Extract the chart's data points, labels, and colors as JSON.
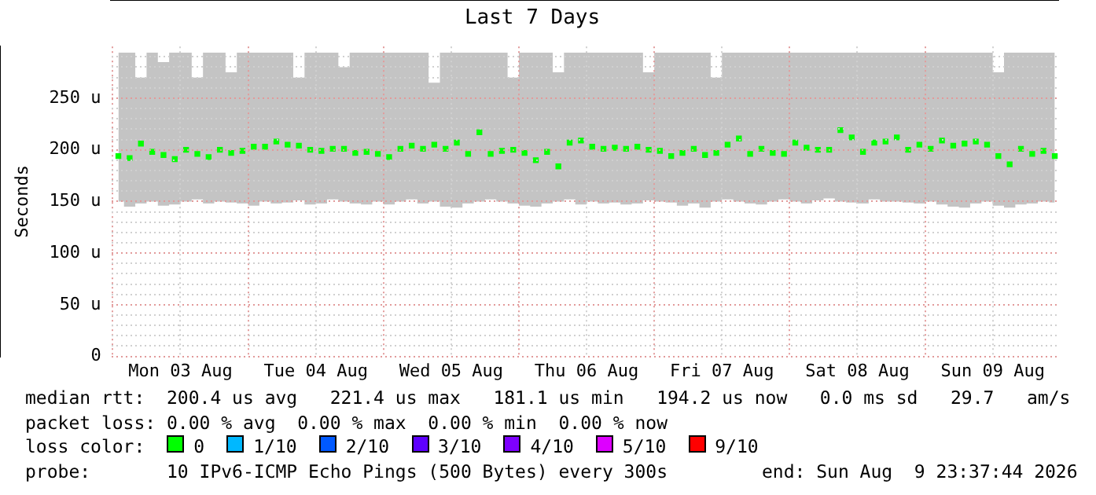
{
  "chart_data": {
    "type": "scatter",
    "title": "Last 7 Days",
    "ylabel": "Seconds",
    "marker": "square",
    "grid": true,
    "legend": "bottom",
    "legend_title": "loss color:",
    "xlim": [
      "2026-08-02T23:37",
      "2026-08-09T23:37"
    ],
    "xticks": [
      {
        "value": "2026-08-03T00:00",
        "label": null
      },
      {
        "value": "2026-08-03T12:00",
        "label": "Mon 03 Aug"
      },
      {
        "value": "2026-08-04T00:00",
        "label": null
      },
      {
        "value": "2026-08-04T12:00",
        "label": "Tue 04 Aug"
      },
      {
        "value": "2026-08-05T00:00",
        "label": null
      },
      {
        "value": "2026-08-05T12:00",
        "label": "Wed 05 Aug"
      },
      {
        "value": "2026-08-06T00:00",
        "label": null
      },
      {
        "value": "2026-08-06T12:00",
        "label": "Thu 06 Aug"
      },
      {
        "value": "2026-08-07T00:00",
        "label": null
      },
      {
        "value": "2026-08-07T12:00",
        "label": "Fri 07 Aug"
      },
      {
        "value": "2026-08-08T00:00",
        "label": null
      },
      {
        "value": "2026-08-08T12:00",
        "label": "Sat 08 Aug"
      },
      {
        "value": "2026-08-09T00:00",
        "label": null
      },
      {
        "value": "2026-08-09T12:00",
        "label": "Sun 09 Aug"
      }
    ],
    "ylim": [
      0,
      300
    ],
    "yticks": [
      {
        "value": 0,
        "label": "0"
      },
      {
        "value": 10,
        "label": null
      },
      {
        "value": 20,
        "label": null
      },
      {
        "value": 30,
        "label": null
      },
      {
        "value": 40,
        "label": null
      },
      {
        "value": 50,
        "label": "50 u"
      },
      {
        "value": 60,
        "label": null
      },
      {
        "value": 70,
        "label": null
      },
      {
        "value": 80,
        "label": null
      },
      {
        "value": 90,
        "label": null
      },
      {
        "value": 100,
        "label": "100 u"
      },
      {
        "value": 110,
        "label": null
      },
      {
        "value": 120,
        "label": null
      },
      {
        "value": 130,
        "label": null
      },
      {
        "value": 140,
        "label": null
      },
      {
        "value": 150,
        "label": "150 u"
      },
      {
        "value": 160,
        "label": null
      },
      {
        "value": 170,
        "label": null
      },
      {
        "value": 180,
        "label": null
      },
      {
        "value": 190,
        "label": null
      },
      {
        "value": 200,
        "label": "200 u"
      },
      {
        "value": 210,
        "label": null
      },
      {
        "value": 220,
        "label": null
      },
      {
        "value": 230,
        "label": null
      },
      {
        "value": 240,
        "label": null
      },
      {
        "value": 250,
        "label": "250 u"
      },
      {
        "value": 260,
        "label": null
      },
      {
        "value": 270,
        "label": null
      },
      {
        "value": 280,
        "label": null
      },
      {
        "value": 290,
        "label": null
      }
    ],
    "x": [
      "2026-08-03T01:00",
      "2026-08-03T03:00",
      "2026-08-03T05:00",
      "2026-08-03T07:00",
      "2026-08-03T09:00",
      "2026-08-03T11:00",
      "2026-08-03T13:00",
      "2026-08-03T15:00",
      "2026-08-03T17:00",
      "2026-08-03T19:00",
      "2026-08-03T21:00",
      "2026-08-03T23:00",
      "2026-08-04T01:00",
      "2026-08-04T03:00",
      "2026-08-04T05:00",
      "2026-08-04T07:00",
      "2026-08-04T09:00",
      "2026-08-04T11:00",
      "2026-08-04T13:00",
      "2026-08-04T15:00",
      "2026-08-04T17:00",
      "2026-08-04T19:00",
      "2026-08-04T21:00",
      "2026-08-04T23:00",
      "2026-08-05T01:00",
      "2026-08-05T03:00",
      "2026-08-05T05:00",
      "2026-08-05T07:00",
      "2026-08-05T09:00",
      "2026-08-05T11:00",
      "2026-08-05T13:00",
      "2026-08-05T15:00",
      "2026-08-05T17:00",
      "2026-08-05T19:00",
      "2026-08-05T21:00",
      "2026-08-05T23:00",
      "2026-08-06T01:00",
      "2026-08-06T03:00",
      "2026-08-06T05:00",
      "2026-08-06T07:00",
      "2026-08-06T09:00",
      "2026-08-06T11:00",
      "2026-08-06T13:00",
      "2026-08-06T15:00",
      "2026-08-06T17:00",
      "2026-08-06T19:00",
      "2026-08-06T21:00",
      "2026-08-06T23:00",
      "2026-08-07T01:00",
      "2026-08-07T03:00",
      "2026-08-07T05:00",
      "2026-08-07T07:00",
      "2026-08-07T09:00",
      "2026-08-07T11:00",
      "2026-08-07T13:00",
      "2026-08-07T15:00",
      "2026-08-07T17:00",
      "2026-08-07T19:00",
      "2026-08-07T21:00",
      "2026-08-07T23:00",
      "2026-08-08T01:00",
      "2026-08-08T03:00",
      "2026-08-08T05:00",
      "2026-08-08T07:00",
      "2026-08-08T09:00",
      "2026-08-08T11:00",
      "2026-08-08T13:00",
      "2026-08-08T15:00",
      "2026-08-08T17:00",
      "2026-08-08T19:00",
      "2026-08-08T21:00",
      "2026-08-08T23:00",
      "2026-08-09T01:00",
      "2026-08-09T03:00",
      "2026-08-09T05:00",
      "2026-08-09T07:00",
      "2026-08-09T09:00",
      "2026-08-09T11:00",
      "2026-08-09T13:00",
      "2026-08-09T15:00",
      "2026-08-09T17:00",
      "2026-08-09T19:00",
      "2026-08-09T21:00",
      "2026-08-09T23:00"
    ],
    "series": [
      {
        "name": "0",
        "color": "#00ff00",
        "values": [
          194,
          192,
          206,
          198,
          195,
          191,
          200,
          196,
          193,
          200,
          197,
          199,
          203,
          203,
          208,
          205,
          204,
          200,
          199,
          201,
          201,
          197,
          198,
          196,
          193,
          201,
          204,
          201,
          205,
          201,
          207,
          196,
          217,
          196,
          199,
          200,
          197,
          190,
          198,
          184,
          207,
          209,
          203,
          201,
          202,
          201,
          203,
          200,
          199,
          194,
          197,
          201,
          195,
          197,
          205,
          211,
          196,
          201,
          197,
          196,
          207,
          202,
          200,
          200,
          219,
          212,
          198,
          207,
          208,
          212,
          200,
          205,
          201,
          209,
          204,
          206,
          208,
          205,
          194,
          186,
          201,
          196,
          199,
          194
        ],
        "upper": [
          294,
          294,
          270,
          294,
          285,
          294,
          294,
          270,
          294,
          294,
          275,
          294,
          294,
          294,
          294,
          294,
          270,
          294,
          294,
          294,
          280,
          294,
          294,
          294,
          294,
          294,
          294,
          294,
          265,
          294,
          294,
          294,
          294,
          294,
          294,
          270,
          294,
          294,
          294,
          275,
          294,
          294,
          294,
          294,
          294,
          294,
          294,
          275,
          294,
          294,
          294,
          294,
          294,
          270,
          294,
          294,
          294,
          294,
          294,
          294,
          294,
          294,
          294,
          294,
          294,
          294,
          294,
          294,
          294,
          294,
          294,
          294,
          294,
          294,
          294,
          294,
          294,
          294,
          275,
          294,
          294,
          294,
          294,
          294
        ],
        "lower": [
          150,
          145,
          148,
          150,
          146,
          147,
          150,
          152,
          148,
          150,
          149,
          148,
          146,
          150,
          148,
          149,
          151,
          147,
          148,
          152,
          150,
          148,
          147,
          150,
          147,
          150,
          152,
          148,
          150,
          145,
          144,
          148,
          150,
          152,
          150,
          148,
          146,
          145,
          148,
          150,
          152,
          147,
          150,
          148,
          149,
          147,
          148,
          151,
          150,
          149,
          146,
          148,
          144,
          150,
          152,
          150,
          148,
          147,
          150,
          152,
          150,
          148,
          151,
          153,
          150,
          149,
          148,
          152,
          150,
          150,
          149,
          148,
          150,
          147,
          145,
          144,
          148,
          150,
          146,
          144,
          147,
          148,
          150,
          149
        ]
      },
      {
        "name": "1/10",
        "color": "#00b8ff",
        "values": [
          null,
          null,
          null,
          null,
          null,
          null,
          null,
          null,
          null,
          null,
          null,
          null,
          null,
          null,
          null,
          null,
          null,
          null,
          null,
          null,
          null,
          null,
          null,
          null,
          null,
          null,
          null,
          null,
          null,
          null,
          null,
          null,
          null,
          null,
          null,
          null,
          null,
          null,
          null,
          null,
          null,
          null,
          null,
          null,
          null,
          null,
          null,
          null,
          null,
          null,
          null,
          null,
          null,
          null,
          null,
          null,
          null,
          null,
          null,
          null,
          null,
          null,
          null,
          null,
          null,
          null,
          null,
          null,
          null,
          null,
          null,
          null,
          null,
          null,
          null,
          null,
          null,
          null,
          null,
          null,
          null,
          null,
          null,
          null
        ]
      },
      {
        "name": "2/10",
        "color": "#0059ff",
        "values": [
          null,
          null,
          null,
          null,
          null,
          null,
          null,
          null,
          null,
          null,
          null,
          null,
          null,
          null,
          null,
          null,
          null,
          null,
          null,
          null,
          null,
          null,
          null,
          null,
          null,
          null,
          null,
          null,
          null,
          null,
          null,
          null,
          null,
          null,
          null,
          null,
          null,
          null,
          null,
          null,
          null,
          null,
          null,
          null,
          null,
          null,
          null,
          null,
          null,
          null,
          null,
          null,
          null,
          null,
          null,
          null,
          null,
          null,
          null,
          null,
          null,
          null,
          null,
          null,
          null,
          null,
          null,
          null,
          null,
          null,
          null,
          null,
          null,
          null,
          null,
          null,
          null,
          null,
          null,
          null,
          null,
          null,
          null,
          null
        ]
      },
      {
        "name": "3/10",
        "color": "#5e00ff",
        "values": [
          null,
          null,
          null,
          null,
          null,
          null,
          null,
          null,
          null,
          null,
          null,
          null,
          null,
          null,
          null,
          null,
          null,
          null,
          null,
          null,
          null,
          null,
          null,
          null,
          null,
          null,
          null,
          null,
          null,
          null,
          null,
          null,
          null,
          null,
          null,
          null,
          null,
          null,
          null,
          null,
          null,
          null,
          null,
          null,
          null,
          null,
          null,
          null,
          null,
          null,
          null,
          null,
          null,
          null,
          null,
          null,
          null,
          null,
          null,
          null,
          null,
          null,
          null,
          null,
          null,
          null,
          null,
          null,
          null,
          null,
          null,
          null,
          null,
          null,
          null,
          null,
          null,
          null,
          null,
          null,
          null,
          null,
          null,
          null
        ]
      },
      {
        "name": "4/10",
        "color": "#7e00ff",
        "values": [
          null,
          null,
          null,
          null,
          null,
          null,
          null,
          null,
          null,
          null,
          null,
          null,
          null,
          null,
          null,
          null,
          null,
          null,
          null,
          null,
          null,
          null,
          null,
          null,
          null,
          null,
          null,
          null,
          null,
          null,
          null,
          null,
          null,
          null,
          null,
          null,
          null,
          null,
          null,
          null,
          null,
          null,
          null,
          null,
          null,
          null,
          null,
          null,
          null,
          null,
          null,
          null,
          null,
          null,
          null,
          null,
          null,
          null,
          null,
          null,
          null,
          null,
          null,
          null,
          null,
          null,
          null,
          null,
          null,
          null,
          null,
          null,
          null,
          null,
          null,
          null,
          null,
          null,
          null,
          null,
          null,
          null,
          null,
          null
        ]
      },
      {
        "name": "5/10",
        "color": "#dd00ff",
        "values": [
          null,
          null,
          null,
          null,
          null,
          null,
          null,
          null,
          null,
          null,
          null,
          null,
          null,
          null,
          null,
          null,
          null,
          null,
          null,
          null,
          null,
          null,
          null,
          null,
          null,
          null,
          null,
          null,
          null,
          null,
          null,
          null,
          null,
          null,
          null,
          null,
          null,
          null,
          null,
          null,
          null,
          null,
          null,
          null,
          null,
          null,
          null,
          null,
          null,
          null,
          null,
          null,
          null,
          null,
          null,
          null,
          null,
          null,
          null,
          null,
          null,
          null,
          null,
          null,
          null,
          null,
          null,
          null,
          null,
          null,
          null,
          null,
          null,
          null,
          null,
          null,
          null,
          null,
          null,
          null,
          null,
          null,
          null,
          null
        ]
      },
      {
        "name": "9/10",
        "color": "#ff0000",
        "values": [
          null,
          null,
          null,
          null,
          null,
          null,
          null,
          null,
          null,
          null,
          null,
          null,
          null,
          null,
          null,
          null,
          null,
          null,
          null,
          null,
          null,
          null,
          null,
          null,
          null,
          null,
          null,
          null,
          null,
          null,
          null,
          null,
          null,
          null,
          null,
          null,
          null,
          null,
          null,
          null,
          null,
          null,
          null,
          null,
          null,
          null,
          null,
          null,
          null,
          null,
          null,
          null,
          null,
          null,
          null,
          null,
          null,
          null,
          null,
          null,
          null,
          null,
          null,
          null,
          null,
          null,
          null,
          null,
          null,
          null,
          null,
          null,
          null,
          null,
          null,
          null,
          null,
          null,
          null,
          null,
          null,
          null,
          null,
          null
        ]
      }
    ],
    "annotations": [
      "median rtt:  200.4 us avg   221.4 us max   181.1 us min   194.2 us now   0.0 ms sd   29.7   am/s",
      "packet loss: 0.00 % avg  0.00 % max  0.00 % min  0.00 % now",
      "probe:       10 IPv6-ICMP Echo Pings (500 Bytes) every 300s",
      "end: Sun Aug  9 23:37:44 2026"
    ]
  }
}
